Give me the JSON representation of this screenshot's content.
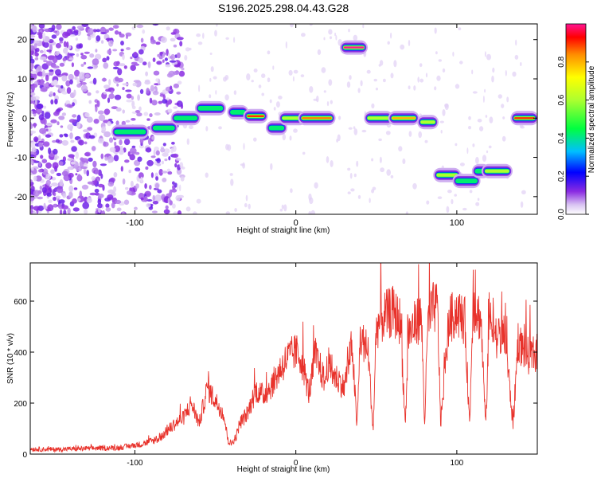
{
  "chart_data": [
    {
      "type": "heatmap",
      "title": "S196.2025.298.04.43.G28",
      "xlabel": "Height of straight line (km)",
      "ylabel": "Frequency (Hz)",
      "xlim": [
        -165,
        150
      ],
      "ylim": [
        -24.5,
        24
      ],
      "xticks": [
        -100,
        0,
        100
      ],
      "yticks": [
        -20,
        -10,
        0,
        10,
        20
      ],
      "colorbar": {
        "label": "Normalized spectral amplitude",
        "range": [
          0,
          1
        ],
        "ticks": [
          0.0,
          0.2,
          0.4,
          0.6,
          0.8
        ],
        "tick_labels": [
          "0.0",
          "0.2",
          "0.4",
          "0.6",
          "0.8"
        ]
      },
      "ridge": [
        {
          "x1": -112,
          "x2": -94,
          "f": -3.5,
          "amp": 0.45
        },
        {
          "x1": -88,
          "x2": -76,
          "f": -2.5,
          "amp": 0.4
        },
        {
          "x1": -75,
          "x2": -62,
          "f": 0.0,
          "amp": 0.45
        },
        {
          "x1": -60,
          "x2": -46,
          "f": 2.5,
          "amp": 0.5
        },
        {
          "x1": -40,
          "x2": -32,
          "f": 1.5,
          "amp": 0.45
        },
        {
          "x1": -30,
          "x2": -20,
          "f": 0.5,
          "amp": 0.9
        },
        {
          "x1": -16,
          "x2": -8,
          "f": -2.5,
          "amp": 0.5
        },
        {
          "x1": -8,
          "x2": 4,
          "f": 0.0,
          "amp": 0.6
        },
        {
          "x1": 4,
          "x2": 22,
          "f": 0.0,
          "amp": 0.85
        },
        {
          "x1": 30,
          "x2": 42,
          "f": 18.0,
          "amp": 1.0
        },
        {
          "x1": 45,
          "x2": 58,
          "f": 0.0,
          "amp": 0.7
        },
        {
          "x1": 60,
          "x2": 74,
          "f": 0.0,
          "amp": 0.8
        },
        {
          "x1": 78,
          "x2": 86,
          "f": -1.0,
          "amp": 0.6
        },
        {
          "x1": 88,
          "x2": 100,
          "f": -14.5,
          "amp": 0.75
        },
        {
          "x1": 100,
          "x2": 112,
          "f": -16.0,
          "amp": 0.5
        },
        {
          "x1": 112,
          "x2": 118,
          "f": -13.5,
          "amp": 0.5
        },
        {
          "x1": 118,
          "x2": 132,
          "f": -13.5,
          "amp": 0.6
        },
        {
          "x1": 136,
          "x2": 148,
          "f": 0.0,
          "amp": 0.9
        }
      ]
    },
    {
      "type": "line",
      "xlabel": "Height of straight line (km)",
      "ylabel": "SNR (10 * v/v)",
      "xlim": [
        -165,
        150
      ],
      "ylim": [
        0,
        750
      ],
      "xticks": [
        -100,
        0,
        100
      ],
      "yticks": [
        0,
        200,
        400,
        600
      ],
      "color": "#e8322b",
      "series": [
        {
          "name": "SNR",
          "x": [
            -165,
            -150,
            -130,
            -110,
            -95,
            -85,
            -80,
            -75,
            -70,
            -65,
            -60,
            -55,
            -50,
            -45,
            -42,
            -40,
            -37,
            -35,
            -30,
            -25,
            -20,
            -15,
            -10,
            -5,
            0,
            3,
            5,
            8,
            10,
            12,
            15,
            18,
            20,
            22,
            25,
            27,
            30,
            35,
            38,
            40,
            45,
            48,
            50,
            55,
            60,
            65,
            68,
            70,
            75,
            78,
            80,
            82,
            85,
            88,
            90,
            95,
            100,
            105,
            108,
            110,
            112,
            115,
            118,
            120,
            122,
            125,
            130,
            135,
            138,
            140,
            145,
            150
          ],
          "y": [
            20,
            18,
            22,
            25,
            40,
            60,
            90,
            120,
            140,
            200,
            120,
            260,
            210,
            160,
            50,
            40,
            70,
            120,
            160,
            250,
            230,
            270,
            330,
            380,
            400,
            380,
            330,
            240,
            300,
            390,
            340,
            280,
            360,
            320,
            300,
            290,
            260,
            430,
            100,
            460,
            400,
            90,
            500,
            540,
            560,
            520,
            110,
            470,
            520,
            540,
            120,
            510,
            570,
            580,
            120,
            520,
            560,
            520,
            110,
            590,
            560,
            530,
            100,
            540,
            490,
            460,
            460,
            110,
            450,
            420,
            380,
            400
          ]
        }
      ]
    }
  ]
}
